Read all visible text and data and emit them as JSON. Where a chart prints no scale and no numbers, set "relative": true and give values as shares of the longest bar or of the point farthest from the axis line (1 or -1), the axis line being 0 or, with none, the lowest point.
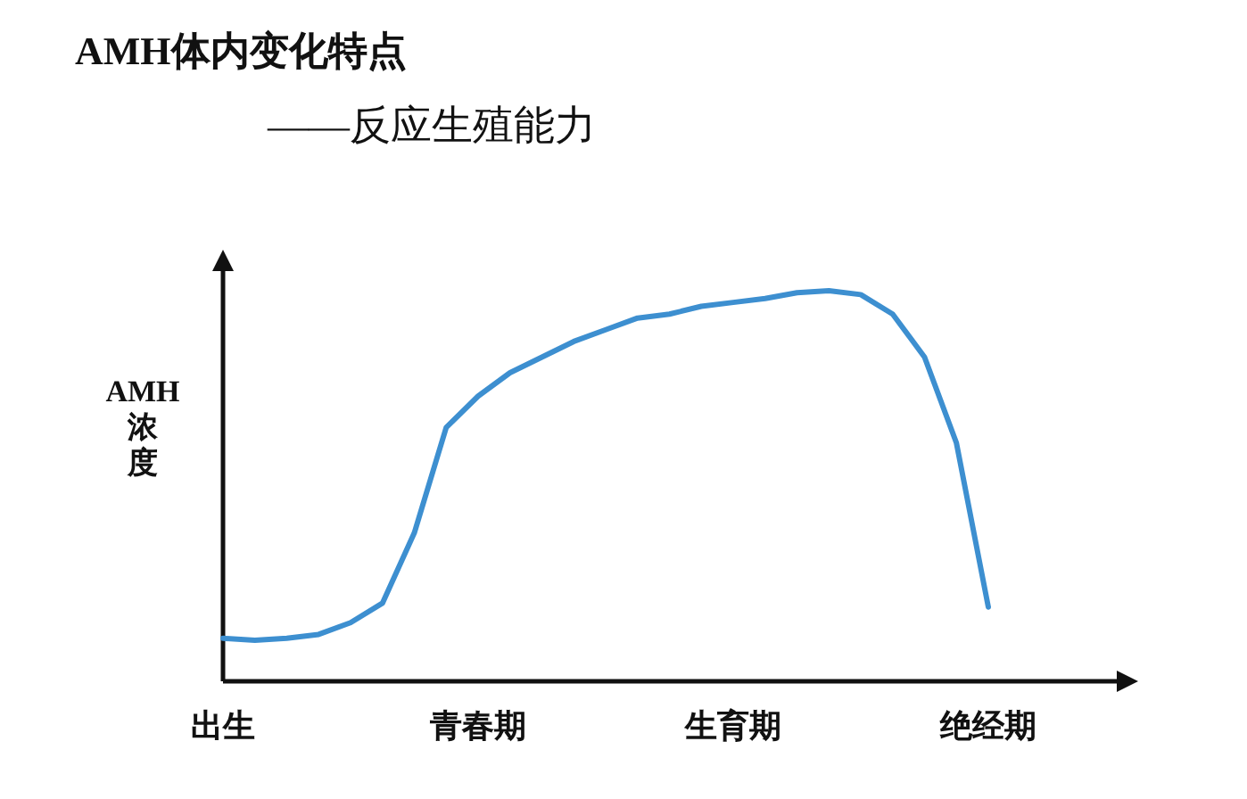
{
  "chart_data": {
    "type": "line",
    "title": "AMH体内变化特点",
    "subtitle": "——反应生殖能力",
    "ylabel": "AMH浓度",
    "relative": true,
    "color": "#3d8fd0",
    "categories": [
      "出生",
      null,
      null,
      null,
      null,
      null,
      null,
      null,
      "青春期",
      null,
      null,
      null,
      null,
      null,
      null,
      null,
      "生育期",
      null,
      null,
      null,
      null,
      null,
      null,
      null,
      "绝经期"
    ],
    "values": [
      0.11,
      0.105,
      0.11,
      0.12,
      0.15,
      0.2,
      0.38,
      0.65,
      0.73,
      0.79,
      0.83,
      0.87,
      0.9,
      0.93,
      0.94,
      0.96,
      0.97,
      0.98,
      0.995,
      1,
      0.99,
      0.94,
      0.83,
      0.61,
      0.19
    ]
  }
}
